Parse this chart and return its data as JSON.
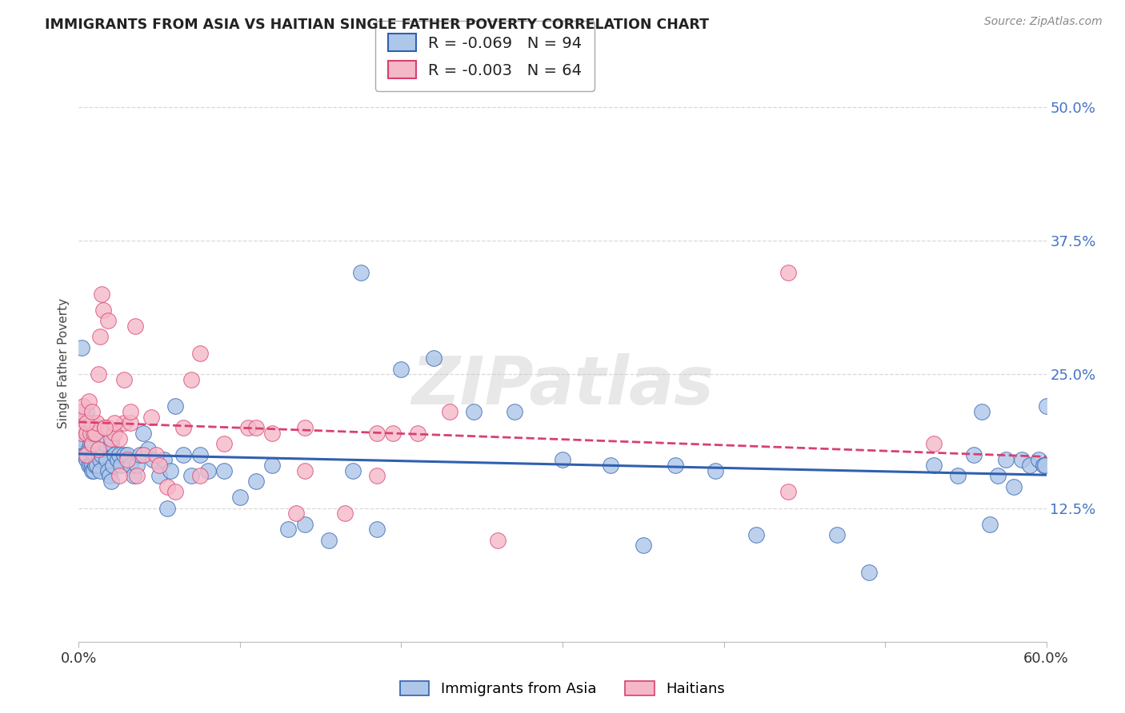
{
  "title": "IMMIGRANTS FROM ASIA VS HAITIAN SINGLE FATHER POVERTY CORRELATION CHART",
  "source_text": "Source: ZipAtlas.com",
  "ylabel": "Single Father Poverty",
  "watermark": "ZIPatlas",
  "legend1_r": "R = -0.069",
  "legend1_n": "N = 94",
  "legend2_r": "R = -0.003",
  "legend2_n": "N = 64",
  "legend1_fill": "#aec6e8",
  "legend2_fill": "#f4b8c8",
  "line1_color": "#3060b0",
  "line2_color": "#d84070",
  "right_tick_color": "#4472c4",
  "xlim": [
    0.0,
    0.6
  ],
  "ylim": [
    0.0,
    0.52
  ],
  "ytick_values": [
    0.125,
    0.25,
    0.375,
    0.5
  ],
  "ytick_labels": [
    "12.5%",
    "25.0%",
    "37.5%",
    "50.0%"
  ],
  "xtick_labels_show": [
    "0.0%",
    "60.0%"
  ],
  "xtick_positions": [
    0.0,
    0.1,
    0.2,
    0.3,
    0.4,
    0.5,
    0.6
  ],
  "background_color": "#ffffff",
  "grid_color": "#d8d8d8",
  "title_fontsize": 12.5,
  "tick_fontsize": 13,
  "source_fontsize": 10,
  "blue_x": [
    0.001,
    0.002,
    0.002,
    0.003,
    0.003,
    0.003,
    0.004,
    0.004,
    0.005,
    0.005,
    0.005,
    0.006,
    0.006,
    0.006,
    0.007,
    0.007,
    0.008,
    0.008,
    0.008,
    0.009,
    0.009,
    0.01,
    0.01,
    0.011,
    0.012,
    0.013,
    0.013,
    0.014,
    0.015,
    0.016,
    0.017,
    0.018,
    0.019,
    0.02,
    0.021,
    0.022,
    0.024,
    0.025,
    0.026,
    0.028,
    0.03,
    0.032,
    0.034,
    0.036,
    0.038,
    0.04,
    0.043,
    0.046,
    0.05,
    0.053,
    0.057,
    0.06,
    0.065,
    0.07,
    0.075,
    0.08,
    0.09,
    0.1,
    0.11,
    0.12,
    0.13,
    0.14,
    0.155,
    0.17,
    0.185,
    0.2,
    0.22,
    0.245,
    0.27,
    0.3,
    0.33,
    0.37,
    0.42,
    0.47,
    0.02,
    0.055,
    0.175,
    0.35,
    0.395,
    0.49,
    0.53,
    0.545,
    0.555,
    0.56,
    0.565,
    0.57,
    0.575,
    0.58,
    0.585,
    0.59,
    0.595,
    0.598,
    0.599,
    0.6
  ],
  "blue_y": [
    0.195,
    0.275,
    0.195,
    0.205,
    0.19,
    0.175,
    0.185,
    0.175,
    0.215,
    0.195,
    0.17,
    0.195,
    0.18,
    0.165,
    0.185,
    0.165,
    0.185,
    0.165,
    0.16,
    0.175,
    0.16,
    0.175,
    0.165,
    0.165,
    0.175,
    0.17,
    0.16,
    0.175,
    0.18,
    0.185,
    0.17,
    0.16,
    0.155,
    0.185,
    0.165,
    0.175,
    0.17,
    0.175,
    0.165,
    0.175,
    0.175,
    0.165,
    0.155,
    0.165,
    0.175,
    0.195,
    0.18,
    0.17,
    0.155,
    0.17,
    0.16,
    0.22,
    0.175,
    0.155,
    0.175,
    0.16,
    0.16,
    0.135,
    0.15,
    0.165,
    0.105,
    0.11,
    0.095,
    0.16,
    0.105,
    0.255,
    0.265,
    0.215,
    0.215,
    0.17,
    0.165,
    0.165,
    0.1,
    0.1,
    0.15,
    0.125,
    0.345,
    0.09,
    0.16,
    0.065,
    0.165,
    0.155,
    0.175,
    0.215,
    0.11,
    0.155,
    0.17,
    0.145,
    0.17,
    0.165,
    0.17,
    0.165,
    0.165,
    0.22
  ],
  "pink_x": [
    0.001,
    0.002,
    0.002,
    0.003,
    0.004,
    0.005,
    0.005,
    0.006,
    0.007,
    0.008,
    0.008,
    0.009,
    0.01,
    0.011,
    0.012,
    0.013,
    0.014,
    0.015,
    0.016,
    0.018,
    0.02,
    0.022,
    0.025,
    0.028,
    0.032,
    0.036,
    0.04,
    0.048,
    0.055,
    0.065,
    0.075,
    0.09,
    0.105,
    0.12,
    0.14,
    0.165,
    0.185,
    0.195,
    0.21,
    0.23,
    0.26,
    0.005,
    0.008,
    0.012,
    0.028,
    0.018,
    0.035,
    0.045,
    0.032,
    0.06,
    0.025,
    0.03,
    0.022,
    0.016,
    0.05,
    0.075,
    0.14,
    0.185,
    0.44,
    0.53,
    0.07,
    0.11,
    0.135,
    0.44
  ],
  "pink_y": [
    0.205,
    0.215,
    0.195,
    0.22,
    0.2,
    0.195,
    0.175,
    0.225,
    0.195,
    0.185,
    0.205,
    0.195,
    0.195,
    0.205,
    0.18,
    0.285,
    0.325,
    0.31,
    0.2,
    0.2,
    0.19,
    0.195,
    0.19,
    0.205,
    0.205,
    0.155,
    0.175,
    0.175,
    0.145,
    0.2,
    0.27,
    0.185,
    0.2,
    0.195,
    0.2,
    0.12,
    0.195,
    0.195,
    0.195,
    0.215,
    0.095,
    0.205,
    0.215,
    0.25,
    0.245,
    0.3,
    0.295,
    0.21,
    0.215,
    0.14,
    0.155,
    0.17,
    0.205,
    0.2,
    0.165,
    0.155,
    0.16,
    0.155,
    0.345,
    0.185,
    0.245,
    0.2,
    0.12,
    0.14
  ]
}
